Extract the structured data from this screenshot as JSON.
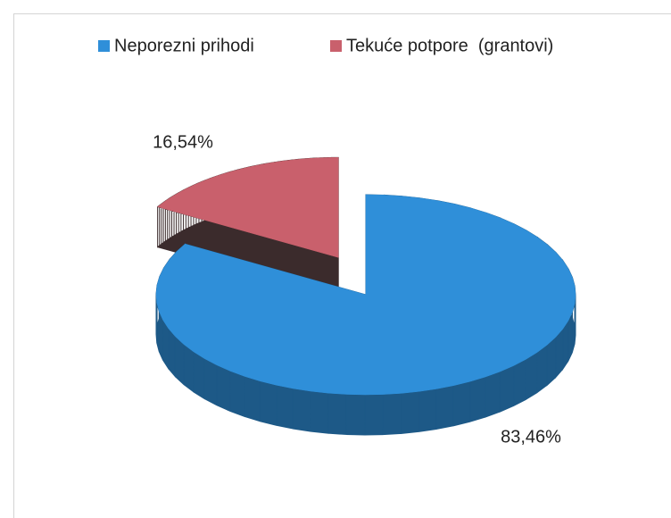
{
  "chart_data": {
    "type": "pie",
    "categories": [
      "Neporezni prihodi",
      "Tekuće potpore  (grantovi)"
    ],
    "values": [
      83.46,
      16.54
    ],
    "value_labels": [
      "83,46%",
      "16,54%"
    ],
    "colors": [
      "#2f8fd9",
      "#c9606c"
    ],
    "legend": "top"
  }
}
